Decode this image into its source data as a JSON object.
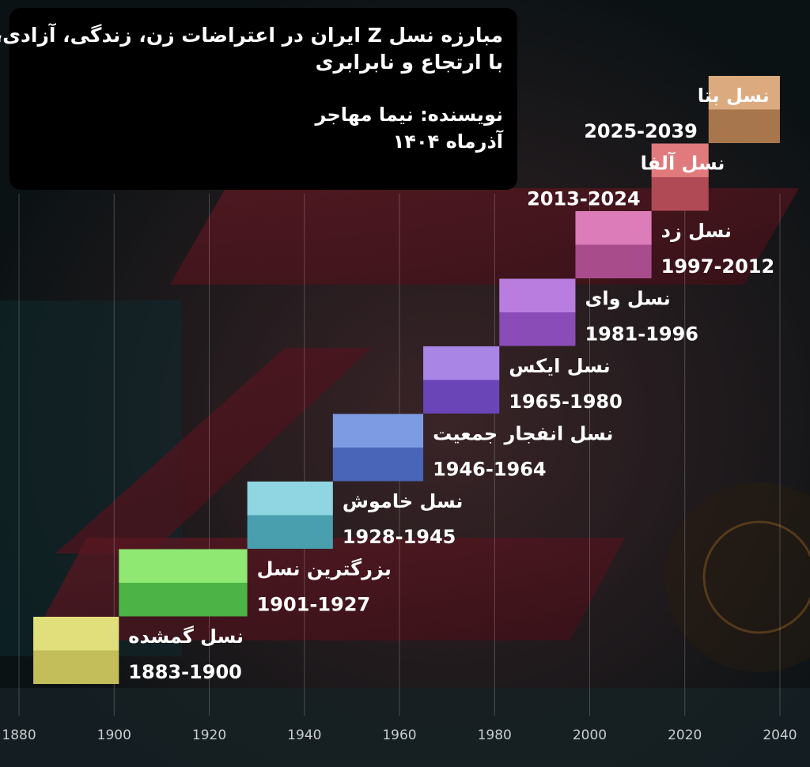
{
  "header": {
    "title_line_1": "مبارزه نسل Z ایران در اعتراضات زن، زندگی، آزادی،",
    "title_line_2": "با ارتجاع و نابرابری",
    "author": "نویسنده: نیما مهاجر",
    "date": "آذرماه ۱۴۰۴"
  },
  "chart_data": {
    "type": "bar",
    "orientation": "horizontal-timeline",
    "xlim": [
      1876,
      2043
    ],
    "x_ticks": [
      1880,
      1900,
      1920,
      1940,
      1960,
      1980,
      2000,
      2020,
      2040
    ],
    "grid": "vertical",
    "generations": [
      {
        "name": "نسل گمشده",
        "range_label": "1883-1900",
        "start": 1883,
        "end": 1900,
        "color_top": "#e0df7c",
        "color_bottom": "#c3be5a"
      },
      {
        "name": "بزرگترین نسل",
        "range_label": "1901-1927",
        "start": 1901,
        "end": 1927,
        "color_top": "#8fe872",
        "color_bottom": "#4cb446"
      },
      {
        "name": "نسل خاموش",
        "range_label": "1928-1945",
        "start": 1928,
        "end": 1945,
        "color_top": "#8fd6e2",
        "color_bottom": "#4a9fae"
      },
      {
        "name": "نسل انفجار جمعیت",
        "range_label": "1946-1964",
        "start": 1946,
        "end": 1964,
        "color_top": "#7c9be3",
        "color_bottom": "#4865b8"
      },
      {
        "name": "نسل ایکس",
        "range_label": "1965-1980",
        "start": 1965,
        "end": 1980,
        "color_top": "#a986e6",
        "color_bottom": "#6a45b7"
      },
      {
        "name": "نسل وای",
        "range_label": "1981-1996",
        "start": 1981,
        "end": 1996,
        "color_top": "#b97de0",
        "color_bottom": "#8a4db8"
      },
      {
        "name": "نسل زد",
        "range_label": "1997-2012",
        "start": 1997,
        "end": 2012,
        "color_top": "#dc7cb8",
        "color_bottom": "#a84c8c"
      },
      {
        "name": "نسل آلفا",
        "range_label": "2013-2024",
        "start": 2013,
        "end": 2024,
        "color_top": "#e07a7d",
        "color_bottom": "#b04a54"
      },
      {
        "name": "نسل بتا",
        "range_label": "2025-2039",
        "start": 2025,
        "end": 2039,
        "color_top": "#dbaa7e",
        "color_bottom": "#a8764c"
      }
    ]
  }
}
